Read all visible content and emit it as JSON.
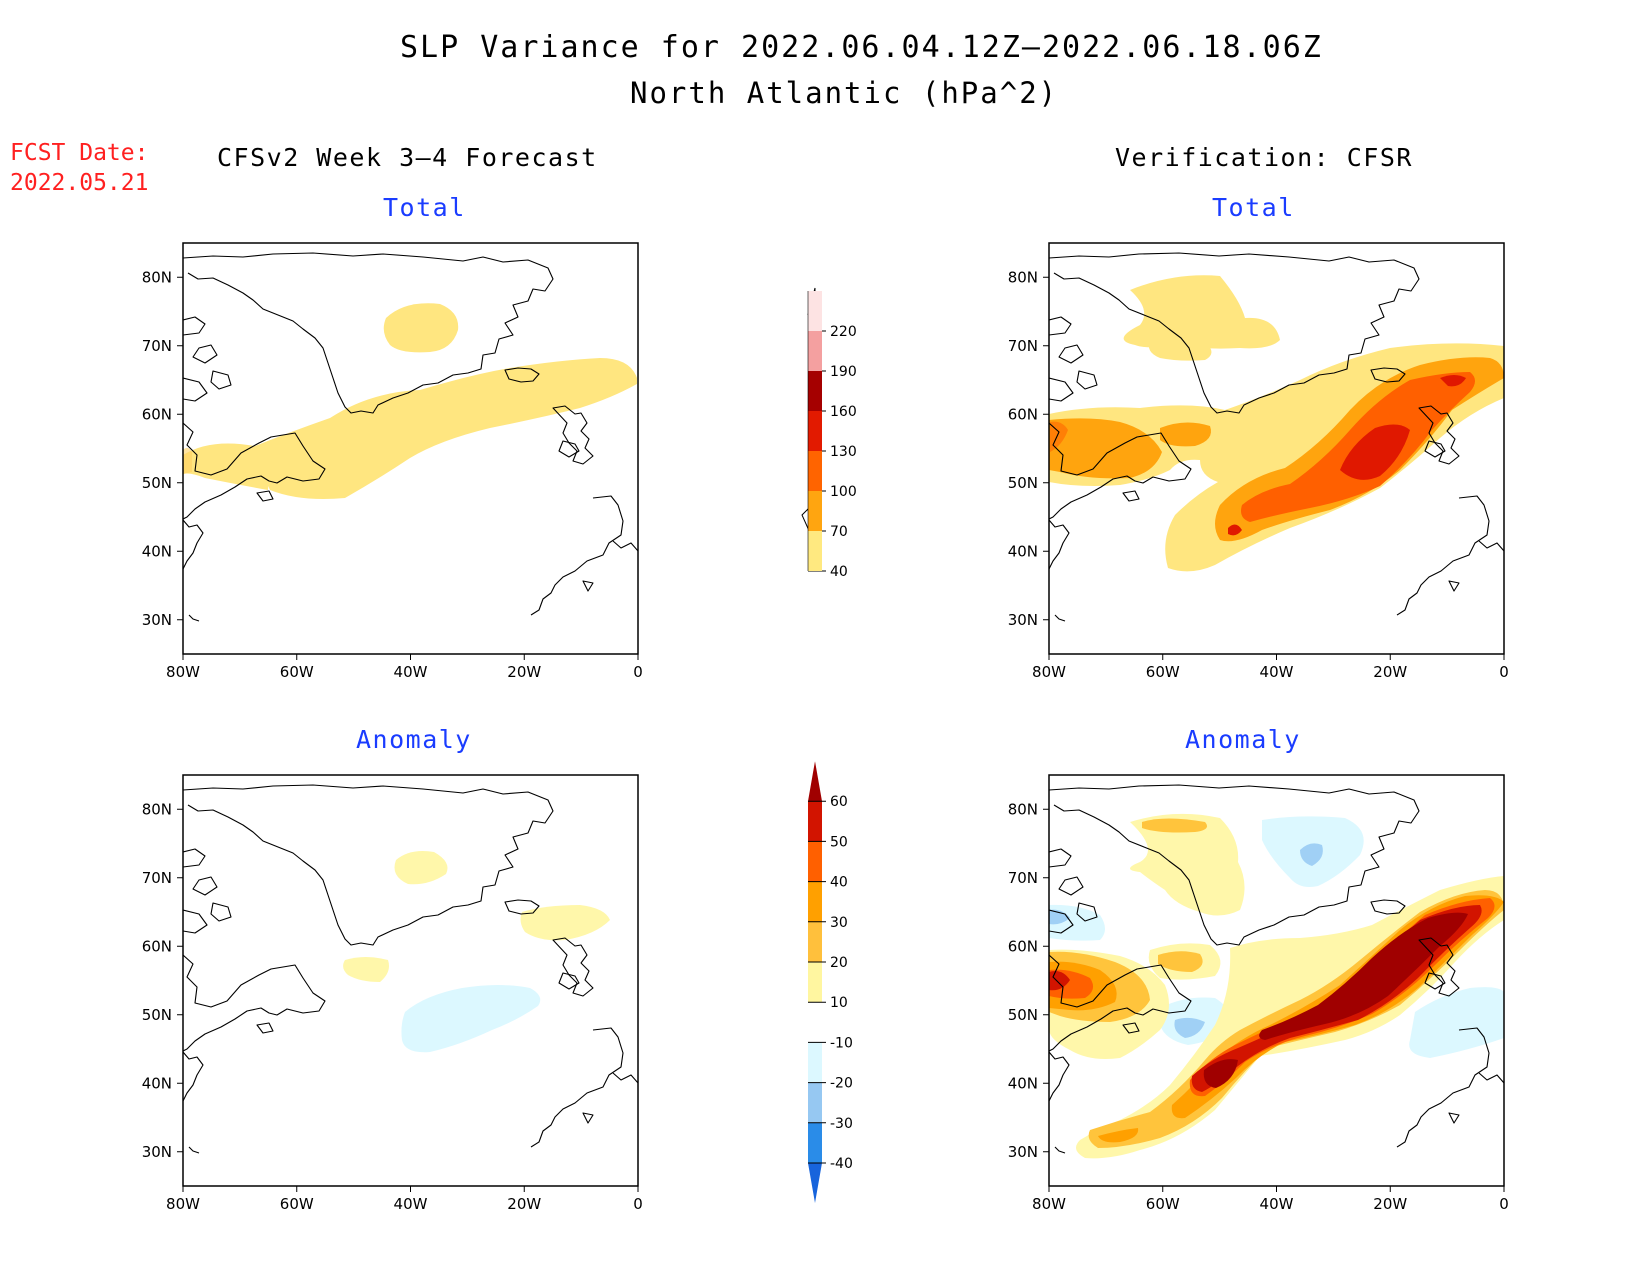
{
  "title": "SLP Variance for 2022.06.04.12Z–2022.06.18.06Z",
  "subtitle": "North Atlantic (hPa^2)",
  "fcst_date": {
    "label": "FCST Date:",
    "value": "2022.05.21"
  },
  "left_header": "CFSv2 Week 3–4 Forecast",
  "right_header": "Verification: CFSR",
  "panel_titles": {
    "total": "Total",
    "anomaly": "Anomaly"
  },
  "map_axes": {
    "lon_ticks": [
      "80W",
      "60W",
      "40W",
      "20W",
      "0"
    ],
    "lat_ticks": [
      "80N",
      "70N",
      "60N",
      "50N",
      "40N",
      "30N"
    ],
    "lon_range": [
      -80,
      0
    ],
    "lat_range": [
      25,
      85
    ]
  },
  "total_colorbar": {
    "levels": [
      "40",
      "70",
      "100",
      "130",
      "160",
      "190",
      "220"
    ],
    "colors": [
      "#ffe980",
      "#ffa510",
      "#ff6400",
      "#e21a00",
      "#a50000",
      "#f4a0a0",
      "#fde3e3"
    ]
  },
  "anomaly_colorbar": {
    "levels": [
      "-40",
      "-30",
      "-20",
      "-10",
      "10",
      "20",
      "30",
      "40",
      "50",
      "60"
    ],
    "colors": [
      "#1764dc",
      "#2a8ce8",
      "#96c8f2",
      "#dcf8ff",
      "#ffffff",
      "#fff6a0",
      "#ffc03c",
      "#ffa000",
      "#ff6000",
      "#d21400",
      "#a00000"
    ]
  },
  "palette": {
    "t40": "#ffe680",
    "t70": "#ffa40e",
    "t100": "#ff6000",
    "t130": "#e01800",
    "t160": "#a00000",
    "a10": "#fff7aa",
    "a20": "#ffc43c",
    "a30": "#ffa000",
    "a40": "#ff6000",
    "a50": "#d21400",
    "a60": "#a00000",
    "n10": "#dcf8ff",
    "n20": "#a0d0f5",
    "n30": "#6fb0ee"
  }
}
